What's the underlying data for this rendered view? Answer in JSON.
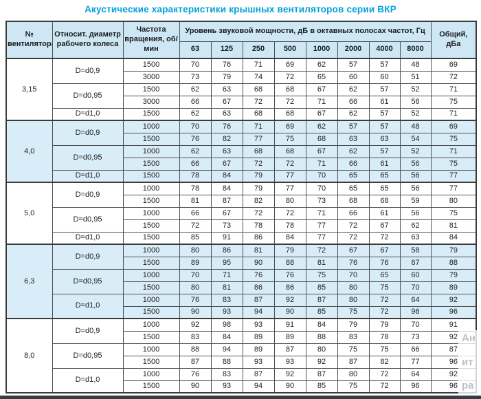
{
  "title": "Акустические характеристики крышных вентиляторов серии ВКР",
  "table": {
    "col_headers": {
      "fan_no": "№ вентилятора",
      "rel_diameter": "Относит. диаметр рабочего колеса",
      "speed": "Частота вращения, об/мин",
      "spl_group": "Уровень звуковой мощности, дБ в октавных полосах частот, Гц",
      "freq_bands": [
        "63",
        "125",
        "250",
        "500",
        "1000",
        "2000",
        "4000",
        "8000"
      ],
      "total": "Общий, дБа"
    },
    "groups": [
      {
        "fan": "3,15",
        "shaded": false,
        "subgroups": [
          {
            "diameter": "D=d0,9",
            "rows": [
              {
                "speed": "1500",
                "levels": [
                  70,
                  76,
                  71,
                  69,
                  62,
                  57,
                  57,
                  48
                ],
                "total": "69"
              },
              {
                "speed": "3000",
                "levels": [
                  73,
                  79,
                  74,
                  72,
                  65,
                  60,
                  60,
                  51
                ],
                "total": "72"
              }
            ]
          },
          {
            "diameter": "D=d0,95",
            "rows": [
              {
                "speed": "1500",
                "levels": [
                  62,
                  63,
                  68,
                  68,
                  67,
                  62,
                  57,
                  52
                ],
                "total": "71"
              },
              {
                "speed": "3000",
                "levels": [
                  66,
                  67,
                  72,
                  72,
                  71,
                  66,
                  61,
                  56
                ],
                "total": "75"
              }
            ]
          },
          {
            "diameter": "D=d1,0",
            "rows": [
              {
                "speed": "1500",
                "levels": [
                  62,
                  63,
                  68,
                  68,
                  67,
                  62,
                  57,
                  52
                ],
                "total": "71"
              }
            ]
          }
        ]
      },
      {
        "fan": "4,0",
        "shaded": true,
        "subgroups": [
          {
            "diameter": "D=d0,9",
            "rows": [
              {
                "speed": "1000",
                "levels": [
                  70,
                  76,
                  71,
                  69,
                  62,
                  57,
                  57,
                  48
                ],
                "total": "69"
              },
              {
                "speed": "1500",
                "levels": [
                  76,
                  82,
                  77,
                  75,
                  68,
                  63,
                  63,
                  54
                ],
                "total": "75"
              }
            ]
          },
          {
            "diameter": "D=d0,95",
            "rows": [
              {
                "speed": "1000",
                "levels": [
                  62,
                  63,
                  68,
                  68,
                  67,
                  62,
                  57,
                  52
                ],
                "total": "71"
              },
              {
                "speed": "1500",
                "levels": [
                  66,
                  67,
                  72,
                  72,
                  71,
                  66,
                  61,
                  56
                ],
                "total": "75"
              }
            ]
          },
          {
            "diameter": "D=d1,0",
            "rows": [
              {
                "speed": "1500",
                "levels": [
                  78,
                  84,
                  79,
                  77,
                  70,
                  65,
                  65,
                  56
                ],
                "total": "77"
              }
            ]
          }
        ]
      },
      {
        "fan": "5,0",
        "shaded": false,
        "subgroups": [
          {
            "diameter": "D=d0,9",
            "rows": [
              {
                "speed": "1000",
                "levels": [
                  78,
                  84,
                  79,
                  77,
                  70,
                  65,
                  65,
                  56
                ],
                "total": "77"
              },
              {
                "speed": "1500",
                "levels": [
                  81,
                  87,
                  82,
                  80,
                  73,
                  68,
                  68,
                  59
                ],
                "total": "80"
              }
            ]
          },
          {
            "diameter": "D=d0,95",
            "rows": [
              {
                "speed": "1000",
                "levels": [
                  66,
                  67,
                  72,
                  72,
                  71,
                  66,
                  61,
                  56
                ],
                "total": "75"
              },
              {
                "speed": "1500",
                "levels": [
                  72,
                  73,
                  78,
                  78,
                  77,
                  72,
                  67,
                  62
                ],
                "total": "81"
              }
            ]
          },
          {
            "diameter": "D=d1,0",
            "rows": [
              {
                "speed": "1500",
                "levels": [
                  85,
                  91,
                  86,
                  84,
                  77,
                  72,
                  72,
                  63
                ],
                "total": "84"
              }
            ]
          }
        ]
      },
      {
        "fan": "6,3",
        "shaded": true,
        "subgroups": [
          {
            "diameter": "D=d0,9",
            "rows": [
              {
                "speed": "1000",
                "levels": [
                  80,
                  86,
                  81,
                  79,
                  72,
                  67,
                  67,
                  58
                ],
                "total": "79"
              },
              {
                "speed": "1500",
                "levels": [
                  89,
                  95,
                  90,
                  88,
                  81,
                  76,
                  76,
                  67
                ],
                "total": "88"
              }
            ]
          },
          {
            "diameter": "D=d0,95",
            "rows": [
              {
                "speed": "1000",
                "levels": [
                  70,
                  71,
                  76,
                  76,
                  75,
                  70,
                  65,
                  60
                ],
                "total": "79"
              },
              {
                "speed": "1500",
                "levels": [
                  80,
                  81,
                  86,
                  86,
                  85,
                  80,
                  75,
                  70
                ],
                "total": "89"
              }
            ]
          },
          {
            "diameter": "D=d1,0",
            "rows": [
              {
                "speed": "1000",
                "levels": [
                  76,
                  83,
                  87,
                  92,
                  87,
                  80,
                  72,
                  64
                ],
                "total": "92"
              },
              {
                "speed": "1500",
                "levels": [
                  90,
                  93,
                  94,
                  90,
                  85,
                  75,
                  72,
                  96
                ],
                "total": "96"
              }
            ]
          }
        ]
      },
      {
        "fan": "8,0",
        "shaded": false,
        "subgroups": [
          {
            "diameter": "D=d0,9",
            "rows": [
              {
                "speed": "1000",
                "levels": [
                  92,
                  98,
                  93,
                  91,
                  84,
                  79,
                  79,
                  70
                ],
                "total": "91"
              },
              {
                "speed": "1500",
                "levels": [
                  83,
                  84,
                  89,
                  89,
                  88,
                  83,
                  78,
                  73
                ],
                "total": "92"
              }
            ]
          },
          {
            "diameter": "D=d0,95",
            "rows": [
              {
                "speed": "1000",
                "levels": [
                  88,
                  94,
                  89,
                  87,
                  80,
                  75,
                  75,
                  66
                ],
                "total": "87"
              },
              {
                "speed": "1500",
                "levels": [
                  87,
                  88,
                  93,
                  93,
                  92,
                  87,
                  82,
                  77
                ],
                "total": "96"
              }
            ]
          },
          {
            "diameter": "D=d1,0",
            "rows": [
              {
                "speed": "1000",
                "levels": [
                  76,
                  83,
                  87,
                  92,
                  87,
                  80,
                  72,
                  64
                ],
                "total": "92"
              },
              {
                "speed": "1500",
                "levels": [
                  90,
                  93,
                  94,
                  90,
                  85,
                  75,
                  72,
                  96
                ],
                "total": "96"
              }
            ]
          }
        ]
      }
    ]
  },
  "watermark": {
    "lines": [
      "Ан",
      "ит",
      "ра"
    ]
  },
  "colors": {
    "title": "#00a1dc",
    "header_bg": "#cde7f5",
    "group_shade_bg": "#d9edf8",
    "border": "#4e4e4e"
  }
}
